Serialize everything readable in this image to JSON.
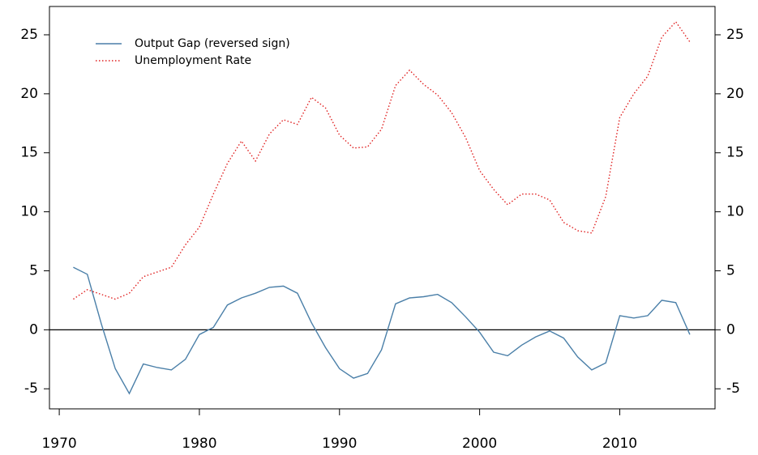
{
  "chart_data": {
    "type": "line",
    "x": [
      1971,
      1972,
      1973,
      1974,
      1975,
      1976,
      1977,
      1978,
      1979,
      1980,
      1981,
      1982,
      1983,
      1984,
      1985,
      1986,
      1987,
      1988,
      1989,
      1990,
      1991,
      1992,
      1993,
      1994,
      1995,
      1996,
      1997,
      1998,
      1999,
      2000,
      2001,
      2002,
      2003,
      2004,
      2005,
      2006,
      2007,
      2008,
      2009,
      2010,
      2011,
      2012,
      2013,
      2014,
      2015
    ],
    "series": [
      {
        "name": "Output Gap (reversed sign)",
        "color": "#4a7fa8",
        "style": "solid",
        "values": [
          5.3,
          4.7,
          0.5,
          -3.3,
          -5.4,
          -2.9,
          -3.2,
          -3.4,
          -2.5,
          -0.4,
          0.2,
          2.1,
          2.7,
          3.1,
          3.6,
          3.7,
          3.1,
          0.6,
          -1.5,
          -3.3,
          -4.1,
          -3.7,
          -1.7,
          2.2,
          2.7,
          2.8,
          3.0,
          2.3,
          1.1,
          -0.2,
          -1.9,
          -2.2,
          -1.3,
          -0.6,
          -0.1,
          -0.7,
          -2.3,
          -3.4,
          -2.8,
          1.2,
          1.0,
          1.2,
          2.5,
          2.3,
          -0.4
        ]
      },
      {
        "name": "Unemployment Rate",
        "color": "#e02020",
        "style": "dotted",
        "values": [
          2.6,
          3.4,
          3.0,
          2.6,
          3.1,
          4.5,
          4.9,
          5.3,
          7.2,
          8.7,
          11.5,
          14.1,
          16.0,
          14.3,
          16.6,
          17.8,
          17.4,
          19.7,
          18.8,
          16.5,
          15.4,
          15.5,
          17.0,
          20.7,
          22.0,
          20.8,
          19.9,
          18.4,
          16.3,
          13.5,
          11.9,
          10.6,
          11.5,
          11.5,
          11.0,
          9.1,
          8.4,
          8.2,
          11.3,
          18.0,
          20.0,
          21.5,
          24.8,
          26.1,
          24.4
        ]
      }
    ],
    "xlim": [
      1969.3,
      2016.8
    ],
    "xticks": [
      1970,
      1980,
      1990,
      2000,
      2010
    ],
    "ylim": [
      -6.7,
      27.4
    ],
    "yticks": [
      -5,
      0,
      5,
      10,
      15,
      20,
      25
    ],
    "hline": 0,
    "legend": "top-left"
  }
}
